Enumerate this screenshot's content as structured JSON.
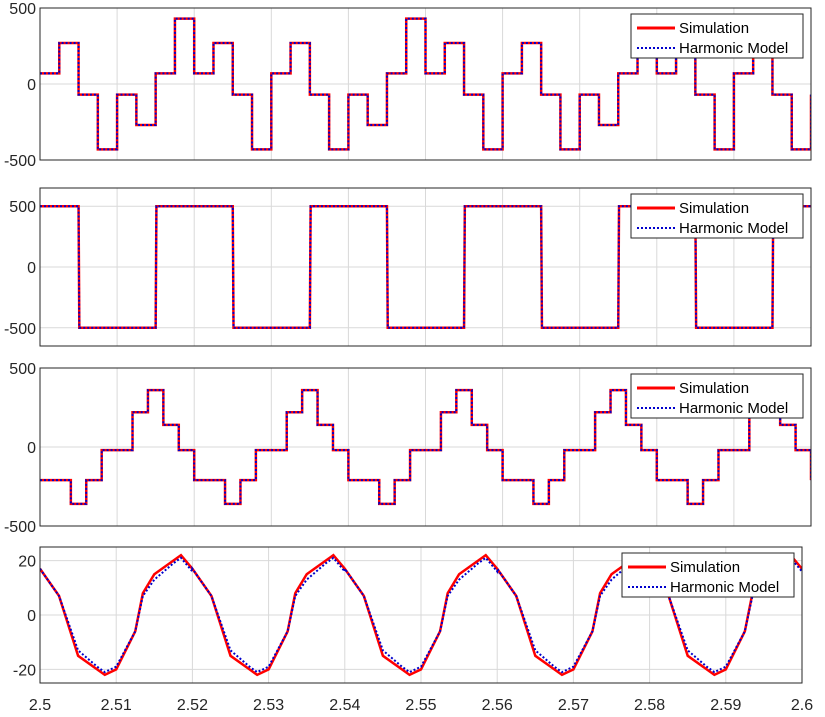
{
  "chart_data": [
    {
      "type": "line",
      "ylim": [
        -500,
        500
      ],
      "yticks": [
        500,
        0,
        -500
      ],
      "xlim": [
        2.5,
        2.6
      ],
      "grid": true,
      "legend_position": "top-right",
      "pattern": "x = time (s), period 0.02; y = level steps",
      "series": [
        {
          "name": "Simulation",
          "color": "#ff0000",
          "style": "solid",
          "x": [
            2.5,
            2.5025,
            2.505,
            2.5075,
            2.51,
            2.5125,
            2.515,
            2.5175,
            2.52,
            2.5225,
            2.525,
            2.5275,
            2.53
          ],
          "y": [
            70,
            270,
            -70,
            -430,
            -70,
            -270,
            70,
            430,
            70,
            270,
            -70,
            -430,
            -70
          ]
        },
        {
          "name": "Harmonic Model",
          "color": "#0000cc",
          "style": "dotted",
          "x": [
            2.5,
            2.5025,
            2.505,
            2.5075,
            2.51,
            2.5125,
            2.515,
            2.5175,
            2.52,
            2.5225,
            2.525,
            2.5275,
            2.53
          ],
          "y": [
            70,
            270,
            -70,
            -430,
            -70,
            -270,
            70,
            430,
            70,
            270,
            -70,
            -430,
            -70
          ]
        }
      ]
    },
    {
      "type": "line",
      "ylim": [
        -650,
        650
      ],
      "yticks": [
        500,
        0,
        -500
      ],
      "xlim": [
        2.5,
        2.6
      ],
      "grid": true,
      "legend_position": "top-right",
      "series": [
        {
          "name": "Simulation",
          "color": "#ff0000",
          "style": "solid",
          "x": [
            2.5,
            2.505,
            2.5051,
            2.515,
            2.5151,
            2.525,
            2.5251,
            2.535,
            2.5351,
            2.545,
            2.5451,
            2.555,
            2.5551,
            2.565,
            2.5651,
            2.575,
            2.5751,
            2.585,
            2.5851,
            2.595,
            2.5951,
            2.6
          ],
          "y": [
            500,
            500,
            -500,
            -500,
            500,
            500,
            -500,
            -500,
            500,
            500,
            -500,
            -500,
            500,
            500,
            -500,
            -500,
            500,
            500,
            -500,
            -500,
            500,
            500
          ]
        },
        {
          "name": "Harmonic Model",
          "color": "#0000cc",
          "style": "dotted",
          "x": [
            2.5,
            2.505,
            2.5051,
            2.515,
            2.5151,
            2.525,
            2.5251,
            2.535,
            2.5351,
            2.545,
            2.5451,
            2.555,
            2.5551,
            2.565,
            2.5651,
            2.575,
            2.5751,
            2.585,
            2.5851,
            2.595,
            2.5951,
            2.6
          ],
          "y": [
            500,
            500,
            -500,
            -500,
            500,
            500,
            -500,
            -500,
            500,
            500,
            -500,
            -500,
            500,
            500,
            -500,
            -500,
            500,
            500,
            -500,
            -500,
            500,
            500
          ]
        }
      ]
    },
    {
      "type": "line",
      "ylim": [
        -500,
        500
      ],
      "yticks": [
        500,
        0,
        -500
      ],
      "xlim": [
        2.5,
        2.6
      ],
      "grid": true,
      "legend_position": "top-right",
      "series": [
        {
          "name": "Simulation",
          "color": "#ff0000",
          "style": "solid",
          "x": [
            2.5,
            2.502,
            2.504,
            2.506,
            2.508,
            2.51,
            2.512,
            2.514,
            2.516,
            2.518,
            2.52
          ],
          "y": [
            -210,
            -210,
            -360,
            -210,
            -20,
            -20,
            220,
            360,
            140,
            -20,
            -210
          ]
        },
        {
          "name": "Harmonic Model",
          "color": "#0000cc",
          "style": "dotted",
          "x": [
            2.5,
            2.502,
            2.504,
            2.506,
            2.508,
            2.51,
            2.512,
            2.514,
            2.516,
            2.518,
            2.52
          ],
          "y": [
            -210,
            -210,
            -360,
            -210,
            -20,
            -20,
            220,
            360,
            140,
            -20,
            -210
          ]
        }
      ]
    },
    {
      "type": "line",
      "ylim": [
        -25,
        25
      ],
      "yticks": [
        20,
        0,
        -20
      ],
      "xlim": [
        2.5,
        2.6
      ],
      "xticks": [
        "2.5",
        "2.51",
        "2.52",
        "2.53",
        "2.54",
        "2.55",
        "2.56",
        "2.57",
        "2.58",
        "2.59",
        "2.6"
      ],
      "grid": true,
      "legend_position": "top-right",
      "series": [
        {
          "name": "Simulation",
          "color": "#ff0000",
          "style": "solid",
          "x": [
            2.5,
            2.5025,
            2.505,
            2.5075,
            2.5085,
            2.51,
            2.5125,
            2.5135,
            2.515,
            2.5175,
            2.5185,
            2.52
          ],
          "y": [
            17,
            7,
            -15,
            -20,
            -22,
            -20,
            -6,
            8,
            15,
            20,
            22,
            17
          ]
        },
        {
          "name": "Harmonic Model",
          "color": "#0000cc",
          "style": "dotted",
          "x": [
            2.5,
            2.5025,
            2.505,
            2.5075,
            2.5085,
            2.51,
            2.5125,
            2.5135,
            2.515,
            2.5175,
            2.5185,
            2.52
          ],
          "y": [
            17,
            7,
            -13,
            -19,
            -21,
            -19,
            -6,
            7,
            13,
            19,
            21,
            16
          ]
        }
      ]
    }
  ]
}
